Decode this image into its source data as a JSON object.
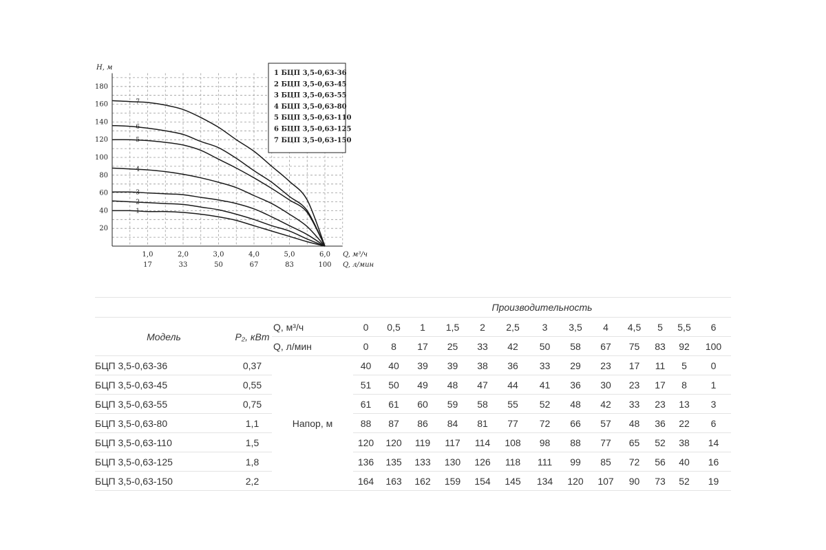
{
  "chart_data": {
    "type": "line",
    "ylabel": "Н, м",
    "xlabel_1": "Q, м³/ч",
    "xlabel_2": "Q, л/мин",
    "x_ticks_m3h": [
      "1,0",
      "2,0",
      "3,0",
      "4,0",
      "5,0",
      "6,0"
    ],
    "x_ticks_lmin": [
      "17",
      "33",
      "50",
      "67",
      "83",
      "100"
    ],
    "y_ticks": [
      "20",
      "40",
      "60",
      "80",
      "100",
      "120",
      "140",
      "160",
      "180"
    ],
    "xlim": [
      0,
      6.5
    ],
    "ylim": [
      0,
      195
    ],
    "grid": true,
    "legend_position": "top-right",
    "x": [
      0,
      0.5,
      1,
      1.5,
      2,
      2.5,
      3,
      3.5,
      4,
      4.5,
      5,
      5.5,
      6
    ],
    "series": [
      {
        "num": "1",
        "name": "1 БЦП 3,5-0,63-36",
        "values": [
          40,
          40,
          39,
          39,
          38,
          36,
          33,
          29,
          23,
          17,
          11,
          5,
          0
        ]
      },
      {
        "num": "2",
        "name": "2 БЦП 3,5-0,63-45",
        "values": [
          51,
          50,
          49,
          48,
          47,
          44,
          41,
          36,
          30,
          23,
          17,
          8,
          1
        ]
      },
      {
        "num": "3",
        "name": "3 БЦП 3,5-0,63-55",
        "values": [
          61,
          61,
          60,
          59,
          58,
          55,
          52,
          48,
          42,
          33,
          23,
          13,
          3
        ]
      },
      {
        "num": "4",
        "name": "4 БЦП 3,5-0,63-80",
        "values": [
          88,
          87,
          86,
          84,
          81,
          77,
          72,
          66,
          57,
          48,
          36,
          22,
          6
        ]
      },
      {
        "num": "5",
        "name": "5 БЦП 3,5-0,63-110",
        "values": [
          120,
          120,
          119,
          117,
          114,
          108,
          98,
          88,
          77,
          65,
          52,
          38,
          14
        ]
      },
      {
        "num": "6",
        "name": "6 БЦП 3,5-0,63-125",
        "values": [
          136,
          135,
          133,
          130,
          126,
          118,
          111,
          99,
          85,
          72,
          56,
          40,
          16
        ]
      },
      {
        "num": "7",
        "name": "7 БЦП 3,5-0,63-150",
        "values": [
          164,
          163,
          162,
          159,
          154,
          145,
          134,
          120,
          107,
          90,
          73,
          52,
          19
        ]
      }
    ]
  },
  "table": {
    "title": "Производительность",
    "col_model": "Модель",
    "col_power": "P₂, кВт",
    "q_m3h_label": "Q, м³/ч",
    "q_lmin_label": "Q, л/мин",
    "q_m3h": [
      "0",
      "0,5",
      "1",
      "1,5",
      "2",
      "2,5",
      "3",
      "3,5",
      "4",
      "4,5",
      "5",
      "5,5",
      "6"
    ],
    "q_lmin": [
      "0",
      "8",
      "17",
      "25",
      "33",
      "42",
      "50",
      "58",
      "67",
      "75",
      "83",
      "92",
      "100"
    ],
    "napor_label": "Напор, м",
    "rows": [
      {
        "model": "БЦП 3,5-0,63-36",
        "power": "0,37",
        "values": [
          "40",
          "40",
          "39",
          "39",
          "38",
          "36",
          "33",
          "29",
          "23",
          "17",
          "11",
          "5",
          "0"
        ]
      },
      {
        "model": "БЦП 3,5-0,63-45",
        "power": "0,55",
        "values": [
          "51",
          "50",
          "49",
          "48",
          "47",
          "44",
          "41",
          "36",
          "30",
          "23",
          "17",
          "8",
          "1"
        ]
      },
      {
        "model": "БЦП 3,5-0,63-55",
        "power": "0,75",
        "values": [
          "61",
          "61",
          "60",
          "59",
          "58",
          "55",
          "52",
          "48",
          "42",
          "33",
          "23",
          "13",
          "3"
        ]
      },
      {
        "model": "БЦП 3,5-0,63-80",
        "power": "1,1",
        "values": [
          "88",
          "87",
          "86",
          "84",
          "81",
          "77",
          "72",
          "66",
          "57",
          "48",
          "36",
          "22",
          "6"
        ]
      },
      {
        "model": "БЦП 3,5-0,63-110",
        "power": "1,5",
        "values": [
          "120",
          "120",
          "119",
          "117",
          "114",
          "108",
          "98",
          "88",
          "77",
          "65",
          "52",
          "38",
          "14"
        ]
      },
      {
        "model": "БЦП 3,5-0,63-125",
        "power": "1,8",
        "values": [
          "136",
          "135",
          "133",
          "130",
          "126",
          "118",
          "111",
          "99",
          "85",
          "72",
          "56",
          "40",
          "16"
        ]
      },
      {
        "model": "БЦП 3,5-0,63-150",
        "power": "2,2",
        "values": [
          "164",
          "163",
          "162",
          "159",
          "154",
          "145",
          "134",
          "120",
          "107",
          "90",
          "73",
          "52",
          "19"
        ]
      }
    ]
  }
}
